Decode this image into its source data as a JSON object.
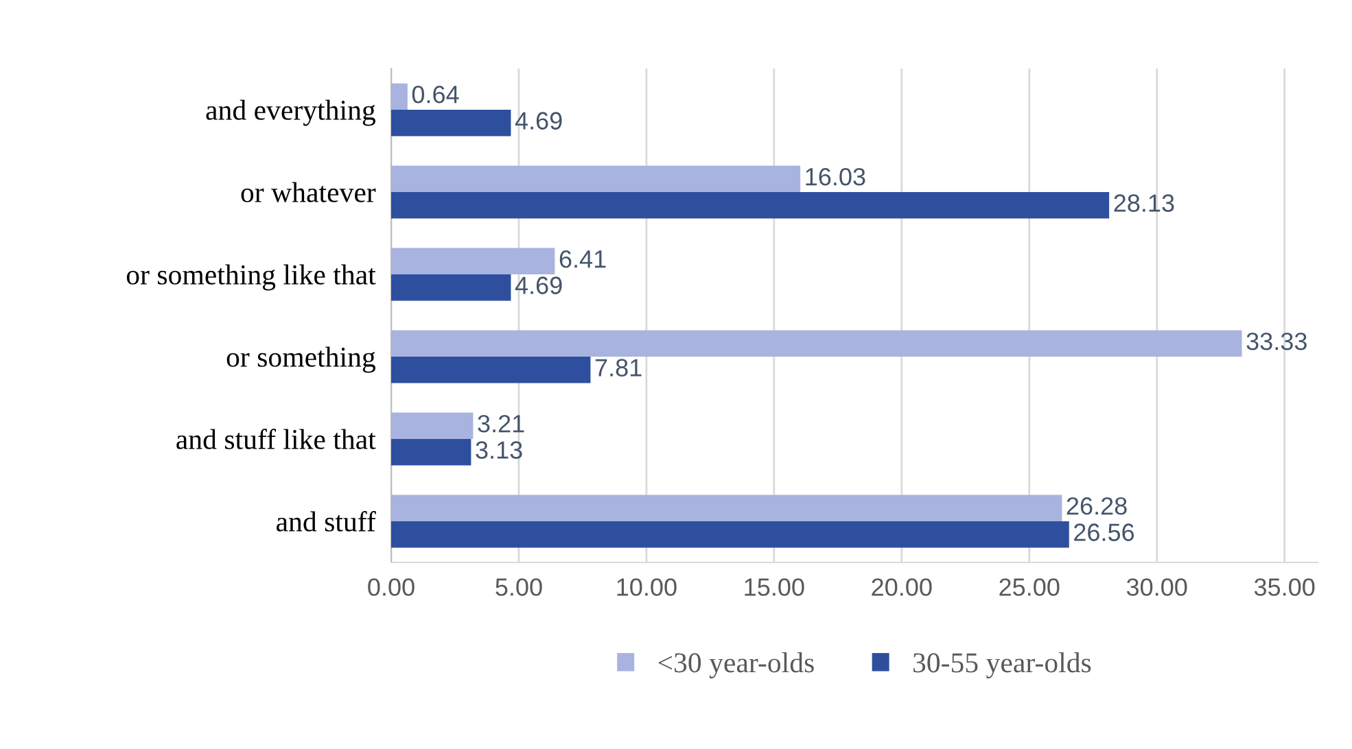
{
  "chart_data": {
    "type": "bar",
    "orientation": "horizontal",
    "categories": [
      "and everything",
      "or whatever",
      "or something like that",
      "or something",
      "and stuff like that",
      "and stuff"
    ],
    "series": [
      {
        "name": "<30 year-olds",
        "color": "#a9b3e0",
        "values": [
          0.64,
          16.03,
          6.41,
          33.33,
          3.21,
          26.28
        ]
      },
      {
        "name": "30-55 year-olds",
        "color": "#2e4f9e",
        "values": [
          4.69,
          28.13,
          4.69,
          7.81,
          3.13,
          26.56
        ]
      }
    ],
    "xlim": [
      0,
      36.3
    ],
    "xticks": [
      {
        "value": 0,
        "label": "0.00"
      },
      {
        "value": 5,
        "label": "5.00"
      },
      {
        "value": 10,
        "label": "10.00"
      },
      {
        "value": 15,
        "label": "15.00"
      },
      {
        "value": 20,
        "label": "20.00"
      },
      {
        "value": 25,
        "label": "25.00"
      },
      {
        "value": 30,
        "label": "30.00"
      },
      {
        "value": 35,
        "label": "35.00"
      }
    ],
    "grid": "x",
    "legend": "bottom",
    "data_labels": true
  }
}
